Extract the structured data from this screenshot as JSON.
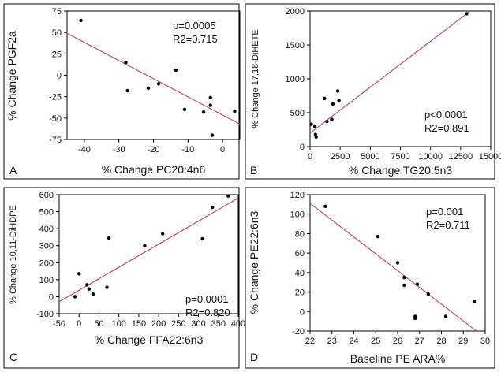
{
  "colors": {
    "points": "#000000",
    "fit_line": "#c83c50",
    "frame": "#000000",
    "axis": "#000000"
  },
  "chart_data": [
    {
      "panel_letter": "A",
      "type": "scatter",
      "xlabel": "% Change PC20:4n6",
      "ylabel": "% Change PGF2a",
      "xlim": [
        -45,
        5
      ],
      "ylim": [
        -75,
        75
      ],
      "xticks": [
        -40,
        -30,
        -20,
        -10,
        0
      ],
      "yticks": [
        -75,
        -50,
        -25,
        0,
        25,
        50,
        75
      ],
      "ylabel_small": false,
      "points": [
        [
          -41,
          64
        ],
        [
          -28,
          15
        ],
        [
          -27.5,
          -18
        ],
        [
          -21.5,
          -15
        ],
        [
          -18.5,
          -10
        ],
        [
          -13.5,
          6
        ],
        [
          -11,
          -40
        ],
        [
          -5.5,
          -43
        ],
        [
          -3.5,
          -26
        ],
        [
          -3.5,
          -35
        ],
        [
          -3,
          -70
        ],
        [
          3.5,
          -42
        ]
      ],
      "fit_line": [
        [
          -45,
          49
        ],
        [
          5,
          -57
        ]
      ],
      "annotations": [
        "p=0.0005",
        "R2=0.715"
      ],
      "annotation_corner": "top-right"
    },
    {
      "panel_letter": "B",
      "type": "scatter",
      "xlabel": "% Change TG20:5n3",
      "ylabel": "% Change 17,18-DiHETE",
      "xlim": [
        0,
        15000
      ],
      "ylim": [
        0,
        2000
      ],
      "xticks": [
        0,
        2500,
        5000,
        7500,
        10000,
        12500,
        15000
      ],
      "yticks": [
        0,
        500,
        1000,
        1500,
        2000
      ],
      "ylabel_small": true,
      "points": [
        [
          100,
          330
        ],
        [
          400,
          300
        ],
        [
          450,
          180
        ],
        [
          500,
          140
        ],
        [
          1200,
          710
        ],
        [
          1400,
          370
        ],
        [
          1800,
          400
        ],
        [
          1900,
          630
        ],
        [
          2300,
          820
        ],
        [
          2400,
          680
        ],
        [
          13000,
          1960
        ]
      ],
      "fit_line": [
        [
          0,
          200
        ],
        [
          13300,
          2000
        ]
      ],
      "annotations": [
        "p<0.0001",
        "R2=0.891"
      ],
      "annotation_corner": "bottom-right"
    },
    {
      "panel_letter": "C",
      "type": "scatter",
      "xlabel": "% Change FFA22:6n3",
      "ylabel": "% Change 10,11-DiHDPE",
      "xlim": [
        -50,
        400
      ],
      "ylim": [
        -100,
        600
      ],
      "xticks": [
        -50,
        0,
        50,
        100,
        150,
        200,
        250,
        300,
        350,
        400
      ],
      "yticks": [
        -100,
        0,
        100,
        200,
        300,
        400,
        500,
        600
      ],
      "ylabel_small": true,
      "points": [
        [
          -10,
          0
        ],
        [
          0,
          135
        ],
        [
          20,
          70
        ],
        [
          25,
          45
        ],
        [
          35,
          15
        ],
        [
          70,
          55
        ],
        [
          75,
          345
        ],
        [
          165,
          300
        ],
        [
          210,
          370
        ],
        [
          310,
          340
        ],
        [
          335,
          525
        ],
        [
          375,
          592
        ]
      ],
      "fit_line": [
        [
          -50,
          -30
        ],
        [
          400,
          580
        ]
      ],
      "annotations": [
        "p=0.0001",
        "R2=0.820"
      ],
      "annotation_corner": "bottom-right"
    },
    {
      "panel_letter": "D",
      "type": "scatter",
      "xlabel": "Baseline PE ARA%",
      "ylabel": "% Change PE22:6n3",
      "xlim": [
        22,
        30
      ],
      "ylim": [
        -20,
        120
      ],
      "xticks": [
        22,
        23,
        24,
        25,
        26,
        27,
        28,
        29,
        30
      ],
      "yticks": [
        -20,
        0,
        20,
        40,
        60,
        80,
        100,
        120
      ],
      "ylabel_small": false,
      "points": [
        [
          22.7,
          108
        ],
        [
          25.1,
          77
        ],
        [
          26,
          50
        ],
        [
          26.3,
          35
        ],
        [
          26.3,
          27
        ],
        [
          26.8,
          -5
        ],
        [
          26.8,
          -7
        ],
        [
          26.9,
          28
        ],
        [
          27.4,
          18
        ],
        [
          28.2,
          -5
        ],
        [
          29.5,
          10
        ]
      ],
      "fit_line": [
        [
          22,
          111
        ],
        [
          29.6,
          -20
        ]
      ],
      "annotations": [
        "p=0.001",
        "R2=0.711"
      ],
      "annotation_corner": "top-right"
    }
  ]
}
